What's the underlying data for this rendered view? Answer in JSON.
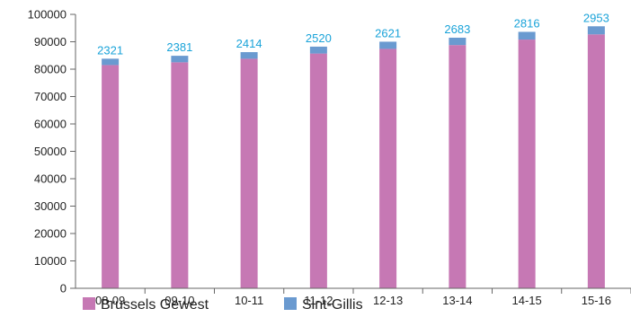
{
  "chart_data": {
    "type": "bar",
    "stacked": true,
    "categories": [
      "08-09",
      "09-10",
      "10-11",
      "11-12",
      "12-13",
      "13-14",
      "14-15",
      "15-16"
    ],
    "series": [
      {
        "name": "Brussels Gewest",
        "color": "#c678b4",
        "values": [
          81500,
          82500,
          83800,
          85700,
          87400,
          88800,
          90800,
          92700
        ]
      },
      {
        "name": "Sint-Gillis",
        "color": "#6a9ad0",
        "values": [
          2321,
          2381,
          2414,
          2520,
          2621,
          2683,
          2816,
          2953
        ]
      }
    ],
    "data_labels": [
      "2321",
      "2381",
      "2414",
      "2520",
      "2621",
      "2683",
      "2816",
      "2953"
    ],
    "data_label_color": "#1aa3d9",
    "y_ticks": [
      0,
      10000,
      20000,
      30000,
      40000,
      50000,
      60000,
      70000,
      80000,
      90000,
      100000
    ],
    "y_tick_labels": [
      "0",
      "10000",
      "20000",
      "30000",
      "40000",
      "50000",
      "60000",
      "70000",
      "80000",
      "90000",
      "100000"
    ],
    "ylim": [
      0,
      100000
    ],
    "title": "",
    "xlabel": "",
    "ylabel": "",
    "grid": false,
    "legend_position": "bottom-left",
    "legend": [
      "Brussels Gewest",
      "Sint-Gillis"
    ]
  }
}
